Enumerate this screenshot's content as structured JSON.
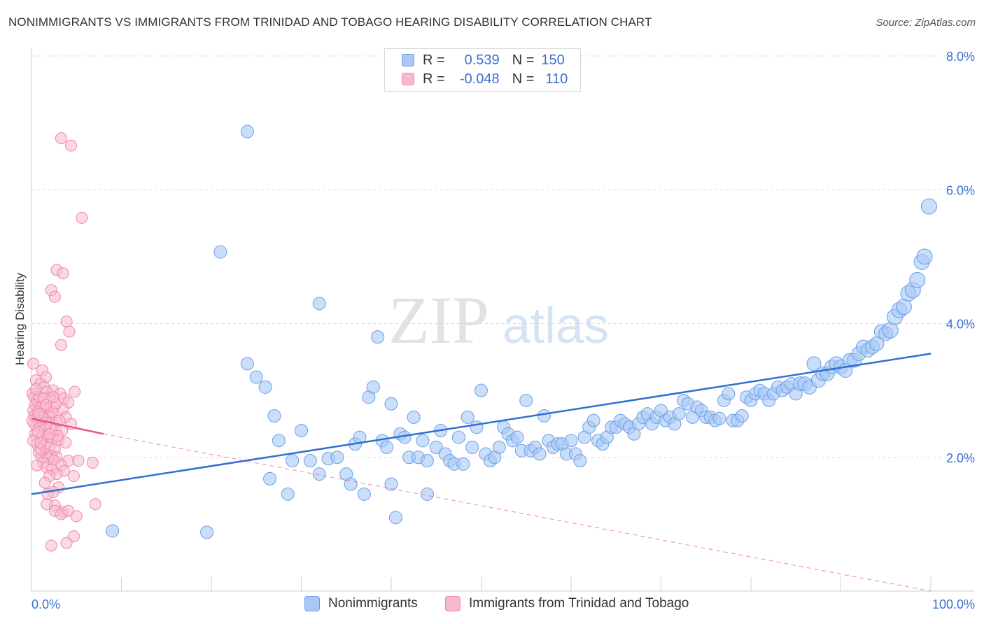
{
  "title": "NONIMMIGRANTS VS IMMIGRANTS FROM TRINIDAD AND TOBAGO HEARING DISABILITY CORRELATION CHART",
  "source": "Source: ZipAtlas.com",
  "watermark": {
    "zip": "ZIP",
    "atlas": "atlas"
  },
  "legend_top": {
    "rows": [
      {
        "r_label": "R =",
        "r_value": "0.539",
        "n_label": "N =",
        "n_value": "150",
        "color": "#a9c8f5",
        "stroke": "#6b9ee8"
      },
      {
        "r_label": "R =",
        "r_value": "-0.048",
        "n_label": "N =",
        "n_value": "110",
        "color": "#f7b9cd",
        "stroke": "#ef86a6"
      }
    ]
  },
  "legend_bottom": [
    {
      "label": "Nonimmigrants",
      "color": "#a9c8f5",
      "stroke": "#6b9ee8"
    },
    {
      "label": "Immigrants from Trinidad and Tobago",
      "color": "#f7b9cd",
      "stroke": "#ef86a6"
    }
  ],
  "chart_data": {
    "type": "scatter",
    "title": "NONIMMIGRANTS VS IMMIGRANTS FROM TRINIDAD AND TOBAGO HEARING DISABILITY CORRELATION CHART",
    "xlabel": "",
    "ylabel": "Hearing Disability",
    "xlim": [
      0,
      100
    ],
    "ylim": [
      0,
      8.0
    ],
    "x_tick_labels": [
      "0.0%",
      "100.0%"
    ],
    "y_ticks": [
      2.0,
      4.0,
      6.0,
      8.0
    ],
    "y_tick_labels": [
      "2.0%",
      "4.0%",
      "6.0%",
      "8.0%"
    ],
    "grid": "horizontal dashed",
    "legend_position": "top-center",
    "series": [
      {
        "name": "Nonimmigrants",
        "color": "#a9c8f5",
        "stroke": "#6b9ee8",
        "trend": {
          "x0": 0,
          "y0": 1.45,
          "x1": 100,
          "y1": 3.55,
          "color": "#2f6fcf"
        },
        "points": [
          [
            9,
            0.9
          ],
          [
            19.5,
            0.88
          ],
          [
            24,
            6.87
          ],
          [
            21,
            5.07
          ],
          [
            25,
            3.2
          ],
          [
            24,
            3.4
          ],
          [
            26,
            3.05
          ],
          [
            27,
            2.62
          ],
          [
            27.5,
            2.25
          ],
          [
            29,
            1.95
          ],
          [
            26.5,
            1.68
          ],
          [
            28.5,
            1.45
          ],
          [
            30,
            2.4
          ],
          [
            31,
            1.95
          ],
          [
            32,
            4.3
          ],
          [
            32,
            1.75
          ],
          [
            33,
            1.98
          ],
          [
            34,
            2.0
          ],
          [
            35,
            1.75
          ],
          [
            35.5,
            1.6
          ],
          [
            36,
            2.2
          ],
          [
            36.5,
            2.3
          ],
          [
            37,
            1.45
          ],
          [
            37.5,
            2.9
          ],
          [
            38,
            3.05
          ],
          [
            38.5,
            3.8
          ],
          [
            39,
            2.25
          ],
          [
            39.5,
            2.15
          ],
          [
            40,
            2.8
          ],
          [
            40,
            1.6
          ],
          [
            40.5,
            1.1
          ],
          [
            41,
            2.35
          ],
          [
            41.5,
            2.3
          ],
          [
            42,
            2.0
          ],
          [
            42.5,
            2.6
          ],
          [
            43,
            2.0
          ],
          [
            43.5,
            2.25
          ],
          [
            44,
            1.95
          ],
          [
            44,
            1.45
          ],
          [
            45,
            2.15
          ],
          [
            45.5,
            2.4
          ],
          [
            46,
            2.05
          ],
          [
            46.5,
            1.95
          ],
          [
            47,
            1.9
          ],
          [
            47.5,
            2.3
          ],
          [
            48,
            1.9
          ],
          [
            48.5,
            2.6
          ],
          [
            49,
            2.15
          ],
          [
            49.5,
            2.45
          ],
          [
            50,
            3.0
          ],
          [
            50.5,
            2.05
          ],
          [
            51,
            1.95
          ],
          [
            51.5,
            2.0
          ],
          [
            52,
            2.15
          ],
          [
            52.5,
            2.45
          ],
          [
            53,
            2.35
          ],
          [
            53.5,
            2.25
          ],
          [
            54,
            2.3
          ],
          [
            54.5,
            2.1
          ],
          [
            55,
            2.85
          ],
          [
            55.5,
            2.1
          ],
          [
            56,
            2.15
          ],
          [
            56.5,
            2.05
          ],
          [
            57,
            2.62
          ],
          [
            57.5,
            2.25
          ],
          [
            58,
            2.15
          ],
          [
            58.5,
            2.2
          ],
          [
            59,
            2.2
          ],
          [
            59.5,
            2.05
          ],
          [
            60,
            2.25
          ],
          [
            60.5,
            2.05
          ],
          [
            61,
            1.95
          ],
          [
            61.5,
            2.3
          ],
          [
            62,
            2.45
          ],
          [
            62.5,
            2.55
          ],
          [
            63,
            2.25
          ],
          [
            63.5,
            2.2
          ],
          [
            64,
            2.3
          ],
          [
            64.5,
            2.45
          ],
          [
            65,
            2.45
          ],
          [
            65.5,
            2.55
          ],
          [
            66,
            2.5
          ],
          [
            66.5,
            2.45
          ],
          [
            67,
            2.35
          ],
          [
            67.5,
            2.5
          ],
          [
            68,
            2.6
          ],
          [
            68.5,
            2.65
          ],
          [
            69,
            2.5
          ],
          [
            69.5,
            2.6
          ],
          [
            70,
            2.7
          ],
          [
            70.5,
            2.55
          ],
          [
            71,
            2.6
          ],
          [
            71.5,
            2.5
          ],
          [
            72,
            2.65
          ],
          [
            72.5,
            2.85
          ],
          [
            73,
            2.8
          ],
          [
            73.5,
            2.6
          ],
          [
            74,
            2.75
          ],
          [
            74.5,
            2.7
          ],
          [
            75,
            2.6
          ],
          [
            75.5,
            2.6
          ],
          [
            76,
            2.55
          ],
          [
            76.5,
            2.58
          ],
          [
            77,
            2.85
          ],
          [
            77.5,
            2.95
          ],
          [
            78,
            2.55
          ],
          [
            78.5,
            2.55
          ],
          [
            79,
            2.62
          ],
          [
            79.5,
            2.9
          ],
          [
            80,
            2.85
          ],
          [
            80.5,
            2.95
          ],
          [
            81,
            3.0
          ],
          [
            81.5,
            2.95
          ],
          [
            82,
            2.85
          ],
          [
            82.5,
            2.95
          ],
          [
            83,
            3.05
          ],
          [
            83.5,
            3.0
          ],
          [
            84,
            3.05
          ],
          [
            84.5,
            3.1
          ],
          [
            85,
            2.95
          ],
          [
            85.5,
            3.1
          ],
          [
            86,
            3.1
          ],
          [
            86.5,
            3.05
          ],
          [
            87,
            3.4
          ],
          [
            87.5,
            3.15
          ],
          [
            88,
            3.25
          ],
          [
            88.5,
            3.25
          ],
          [
            89,
            3.35
          ],
          [
            89.5,
            3.4
          ],
          [
            90,
            3.35
          ],
          [
            90.5,
            3.3
          ],
          [
            91,
            3.45
          ],
          [
            91.5,
            3.45
          ],
          [
            92,
            3.55
          ],
          [
            92.5,
            3.65
          ],
          [
            93,
            3.6
          ],
          [
            93.5,
            3.65
          ],
          [
            94,
            3.7
          ],
          [
            94.5,
            3.88
          ],
          [
            95,
            3.85
          ],
          [
            95.5,
            3.9
          ],
          [
            96,
            4.1
          ],
          [
            96.5,
            4.2
          ],
          [
            97,
            4.25
          ],
          [
            97.5,
            4.45
          ],
          [
            98,
            4.5
          ],
          [
            98.5,
            4.65
          ],
          [
            99,
            4.92
          ],
          [
            99.3,
            5.0
          ],
          [
            99.8,
            5.75
          ]
        ]
      },
      {
        "name": "Immigrants from Trinidad and Tobago",
        "color": "#f7b9cd",
        "stroke": "#ef86a6",
        "trend": {
          "x0": 0,
          "y0": 2.58,
          "x1": 8,
          "y1": 2.35,
          "dash_to_x": 100,
          "dash_to_y": -0.3,
          "color": "#e8568a"
        },
        "points": [
          [
            3.3,
            6.77
          ],
          [
            4.4,
            6.66
          ],
          [
            5.6,
            5.58
          ],
          [
            2.8,
            4.8
          ],
          [
            3.5,
            4.75
          ],
          [
            2.2,
            4.5
          ],
          [
            2.6,
            4.4
          ],
          [
            3.9,
            4.03
          ],
          [
            4.2,
            3.88
          ],
          [
            3.3,
            3.68
          ],
          [
            0.2,
            3.4
          ],
          [
            1.2,
            3.3
          ],
          [
            1.6,
            3.2
          ],
          [
            0.5,
            3.15
          ],
          [
            1.0,
            3.1
          ],
          [
            1.4,
            3.05
          ],
          [
            2.4,
            3.0
          ],
          [
            3.2,
            2.95
          ],
          [
            4.8,
            2.98
          ],
          [
            0.1,
            2.95
          ],
          [
            0.3,
            2.9
          ],
          [
            0.6,
            2.85
          ],
          [
            2.0,
            2.88
          ],
          [
            3.6,
            2.88
          ],
          [
            4.1,
            2.82
          ],
          [
            0.4,
            2.78
          ],
          [
            1.1,
            2.75
          ],
          [
            1.8,
            2.72
          ],
          [
            2.5,
            2.75
          ],
          [
            3.5,
            2.72
          ],
          [
            0.2,
            2.7
          ],
          [
            0.7,
            2.68
          ],
          [
            1.3,
            2.65
          ],
          [
            1.9,
            2.62
          ],
          [
            2.2,
            2.6
          ],
          [
            2.8,
            2.55
          ],
          [
            0.5,
            2.58
          ],
          [
            1.0,
            2.55
          ],
          [
            1.6,
            2.52
          ],
          [
            0.3,
            2.5
          ],
          [
            0.9,
            2.45
          ],
          [
            1.5,
            2.42
          ],
          [
            2.1,
            2.45
          ],
          [
            2.7,
            2.42
          ],
          [
            3.4,
            2.4
          ],
          [
            0.4,
            2.35
          ],
          [
            1.2,
            2.32
          ],
          [
            1.8,
            2.3
          ],
          [
            2.4,
            2.28
          ],
          [
            3.0,
            2.25
          ],
          [
            3.8,
            2.22
          ],
          [
            0.6,
            2.2
          ],
          [
            1.4,
            2.18
          ],
          [
            2.0,
            2.15
          ],
          [
            2.6,
            2.12
          ],
          [
            0.8,
            2.08
          ],
          [
            1.6,
            2.05
          ],
          [
            2.2,
            2.02
          ],
          [
            2.8,
            2.0
          ],
          [
            1.1,
            2.0
          ],
          [
            1.9,
            1.98
          ],
          [
            2.5,
            1.95
          ],
          [
            1.3,
            1.92
          ],
          [
            4.1,
            1.95
          ],
          [
            3.3,
            1.88
          ],
          [
            0.6,
            1.88
          ],
          [
            1.7,
            1.85
          ],
          [
            2.3,
            1.82
          ],
          [
            3.6,
            1.8
          ],
          [
            2.8,
            1.75
          ],
          [
            4.7,
            1.72
          ],
          [
            6.8,
            1.92
          ],
          [
            5.2,
            1.95
          ],
          [
            2.0,
            1.72
          ],
          [
            1.5,
            1.62
          ],
          [
            3.0,
            1.55
          ],
          [
            2.4,
            1.48
          ],
          [
            1.8,
            1.45
          ],
          [
            2.6,
            1.28
          ],
          [
            1.7,
            1.3
          ],
          [
            3.5,
            1.18
          ],
          [
            2.6,
            1.2
          ],
          [
            3.3,
            1.15
          ],
          [
            4.1,
            1.2
          ],
          [
            5.0,
            1.12
          ],
          [
            7.1,
            1.3
          ],
          [
            4.7,
            0.82
          ],
          [
            3.9,
            0.72
          ],
          [
            2.2,
            0.68
          ],
          [
            0.3,
            2.62
          ],
          [
            0.9,
            2.9
          ],
          [
            1.7,
            2.98
          ],
          [
            2.3,
            2.68
          ],
          [
            0.2,
            2.25
          ],
          [
            1.0,
            2.12
          ],
          [
            2.9,
            2.32
          ],
          [
            0.5,
            3.02
          ],
          [
            1.4,
            2.88
          ],
          [
            3.8,
            2.6
          ],
          [
            4.4,
            2.5
          ],
          [
            0.7,
            2.38
          ],
          [
            1.2,
            2.6
          ],
          [
            2.7,
            2.8
          ],
          [
            0.1,
            2.55
          ],
          [
            2.0,
            2.35
          ],
          [
            1.6,
            2.78
          ],
          [
            0.8,
            2.65
          ],
          [
            3.1,
            2.55
          ],
          [
            2.4,
            2.9
          ],
          [
            1.0,
            2.22
          ]
        ]
      }
    ]
  }
}
